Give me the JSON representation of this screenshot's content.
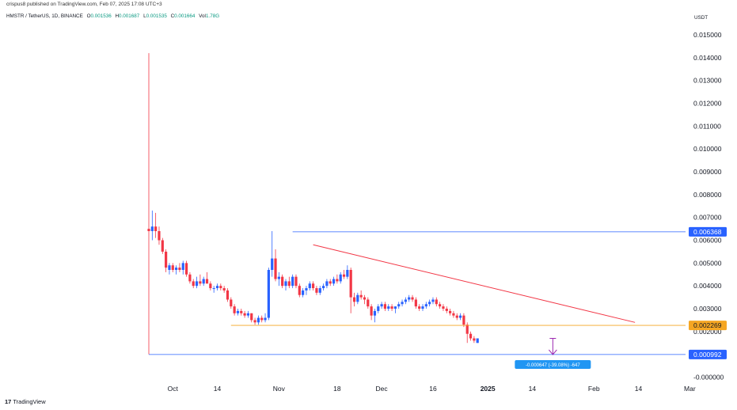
{
  "header": {
    "publisher": "crispus8 published on TradingView.com, Feb 07, 2025 17:08 UTC+3",
    "symbol": "HMSTR / TetherUS, 1D, BINANCE",
    "o_label": "O",
    "o_value": "0.001536",
    "h_label": "H",
    "h_value": "0.001687",
    "l_label": "L",
    "l_value": "0.001535",
    "c_label": "C",
    "c_value": "0.001664",
    "vol_label": "Vol",
    "vol_value": "1.78G",
    "currency": "USDT"
  },
  "footer": {
    "brand_logo": "17",
    "brand_name": "TradingView"
  },
  "colors": {
    "up": "#2962ff",
    "down": "#f23645",
    "resistance": "#f23645",
    "support": "#f5a623",
    "hline": "#2962ff",
    "accent": "#9c27b0",
    "grid": "#e0e3eb"
  },
  "chart_data": {
    "type": "candlestick",
    "title": "",
    "xlabel": "",
    "ylabel": "",
    "ylim": [
      -0.0005,
      0.0157
    ],
    "grid": false,
    "y_ticks": [
      "0.015000",
      "0.014000",
      "0.013000",
      "0.012000",
      "0.011000",
      "0.010000",
      "0.009000",
      "0.008000",
      "0.007000",
      "0.006000",
      "0.005000",
      "0.004000",
      "0.003000",
      "0.002000",
      "-0.000000"
    ],
    "x_ticks": [
      {
        "label": "Oct",
        "day": 10
      },
      {
        "label": "14",
        "day": 23
      },
      {
        "label": "Nov",
        "day": 41
      },
      {
        "label": "18",
        "day": 58
      },
      {
        "label": "Dec",
        "day": 71
      },
      {
        "label": "16",
        "day": 86
      },
      {
        "label": "2025",
        "day": 102,
        "bold": true
      },
      {
        "label": "14",
        "day": 115
      },
      {
        "label": "Feb",
        "day": 133
      },
      {
        "label": "14",
        "day": 146
      },
      {
        "label": "Mar",
        "day": 161
      }
    ],
    "candles": [
      [
        0.0065,
        0.0142,
        0.001,
        0.0064
      ],
      [
        0.0064,
        0.0073,
        0.006,
        0.0066
      ],
      [
        0.0066,
        0.0072,
        0.0061,
        0.0064
      ],
      [
        0.0064,
        0.0066,
        0.0058,
        0.006
      ],
      [
        0.006,
        0.0061,
        0.0054,
        0.0055
      ],
      [
        0.0055,
        0.0056,
        0.0046,
        0.0048
      ],
      [
        0.0047,
        0.005,
        0.0045,
        0.0049
      ],
      [
        0.0049,
        0.005,
        0.0046,
        0.0047
      ],
      [
        0.0047,
        0.0049,
        0.0045,
        0.0048
      ],
      [
        0.0048,
        0.005,
        0.0046,
        0.0047
      ],
      [
        0.0047,
        0.0051,
        0.0045,
        0.005
      ],
      [
        0.005,
        0.0051,
        0.0044,
        0.0045
      ],
      [
        0.0045,
        0.0046,
        0.0041,
        0.0042
      ],
      [
        0.0042,
        0.0043,
        0.0039,
        0.004
      ],
      [
        0.004,
        0.0044,
        0.0039,
        0.0042
      ],
      [
        0.0042,
        0.0045,
        0.004,
        0.0041
      ],
      [
        0.0041,
        0.0044,
        0.004,
        0.0043
      ],
      [
        0.0043,
        0.0046,
        0.0041,
        0.0041
      ],
      [
        0.0041,
        0.0042,
        0.0038,
        0.0039
      ],
      [
        0.0039,
        0.004,
        0.0037,
        0.0039
      ],
      [
        0.0039,
        0.0041,
        0.0038,
        0.004
      ],
      [
        0.004,
        0.0041,
        0.0038,
        0.0039
      ],
      [
        0.0039,
        0.004,
        0.0037,
        0.0038
      ],
      [
        0.0038,
        0.0039,
        0.0033,
        0.0034
      ],
      [
        0.0034,
        0.0035,
        0.003,
        0.0031
      ],
      [
        0.0031,
        0.0032,
        0.0027,
        0.0028
      ],
      [
        0.0028,
        0.003,
        0.0027,
        0.0029
      ],
      [
        0.0029,
        0.003,
        0.0027,
        0.0028
      ],
      [
        0.0028,
        0.0029,
        0.0026,
        0.0027
      ],
      [
        0.0027,
        0.0029,
        0.0026,
        0.0028
      ],
      [
        0.0028,
        0.0028,
        0.0024,
        0.0025
      ],
      [
        0.0025,
        0.0026,
        0.0023,
        0.0024
      ],
      [
        0.0024,
        0.0027,
        0.0023,
        0.0026
      ],
      [
        0.0026,
        0.0027,
        0.0024,
        0.0025
      ],
      [
        0.0025,
        0.0028,
        0.0024,
        0.0026
      ],
      [
        0.0026,
        0.0048,
        0.0025,
        0.0047
      ],
      [
        0.0047,
        0.0064,
        0.0044,
        0.0052
      ],
      [
        0.0052,
        0.0056,
        0.0042,
        0.0043
      ],
      [
        0.0043,
        0.0046,
        0.004,
        0.0044
      ],
      [
        0.0044,
        0.0045,
        0.0039,
        0.004
      ],
      [
        0.004,
        0.0043,
        0.0038,
        0.0042
      ],
      [
        0.0042,
        0.0044,
        0.0039,
        0.004
      ],
      [
        0.004,
        0.0045,
        0.0039,
        0.0044
      ],
      [
        0.0044,
        0.0045,
        0.0039,
        0.004
      ],
      [
        0.004,
        0.0041,
        0.0035,
        0.0036
      ],
      [
        0.0036,
        0.0039,
        0.0035,
        0.0038
      ],
      [
        0.0038,
        0.004,
        0.0036,
        0.0039
      ],
      [
        0.0039,
        0.0042,
        0.0038,
        0.0041
      ],
      [
        0.0041,
        0.0042,
        0.0038,
        0.0039
      ],
      [
        0.0039,
        0.004,
        0.0036,
        0.0037
      ],
      [
        0.0037,
        0.004,
        0.0036,
        0.0039
      ],
      [
        0.0039,
        0.0041,
        0.0038,
        0.004
      ],
      [
        0.004,
        0.0043,
        0.0039,
        0.0042
      ],
      [
        0.0042,
        0.0043,
        0.004,
        0.0041
      ],
      [
        0.0041,
        0.0044,
        0.004,
        0.0043
      ],
      [
        0.0043,
        0.0045,
        0.0041,
        0.0042
      ],
      [
        0.0042,
        0.0046,
        0.0041,
        0.0045
      ],
      [
        0.0045,
        0.0047,
        0.0043,
        0.0044
      ],
      [
        0.0044,
        0.0049,
        0.0043,
        0.0047
      ],
      [
        0.0047,
        0.0048,
        0.0028,
        0.0035
      ],
      [
        0.0035,
        0.0037,
        0.0031,
        0.0033
      ],
      [
        0.0033,
        0.0037,
        0.0032,
        0.0036
      ],
      [
        0.0036,
        0.0038,
        0.0034,
        0.0035
      ],
      [
        0.0035,
        0.0036,
        0.0032,
        0.0034
      ],
      [
        0.0034,
        0.0035,
        0.003,
        0.0031
      ],
      [
        0.0031,
        0.0032,
        0.0025,
        0.0027
      ],
      [
        0.0027,
        0.003,
        0.0024,
        0.0029
      ],
      [
        0.0029,
        0.0032,
        0.0028,
        0.0031
      ],
      [
        0.0031,
        0.0033,
        0.003,
        0.0032
      ],
      [
        0.0032,
        0.0033,
        0.0029,
        0.003
      ],
      [
        0.003,
        0.0032,
        0.0029,
        0.0031
      ],
      [
        0.0031,
        0.0032,
        0.0029,
        0.003
      ],
      [
        0.003,
        0.0031,
        0.0028,
        0.0031
      ],
      [
        0.0031,
        0.0033,
        0.003,
        0.0032
      ],
      [
        0.0032,
        0.0034,
        0.0031,
        0.0033
      ],
      [
        0.0033,
        0.0035,
        0.0032,
        0.0034
      ],
      [
        0.0034,
        0.0036,
        0.0033,
        0.0035
      ],
      [
        0.0035,
        0.0036,
        0.0033,
        0.0034
      ],
      [
        0.0034,
        0.0035,
        0.003,
        0.0031
      ],
      [
        0.0031,
        0.0032,
        0.0029,
        0.003
      ],
      [
        0.003,
        0.0032,
        0.0029,
        0.0031
      ],
      [
        0.0031,
        0.0033,
        0.003,
        0.0032
      ],
      [
        0.0032,
        0.0034,
        0.0031,
        0.0033
      ],
      [
        0.0033,
        0.0035,
        0.0032,
        0.0034
      ],
      [
        0.0034,
        0.0035,
        0.0031,
        0.0032
      ],
      [
        0.0032,
        0.0033,
        0.003,
        0.0031
      ],
      [
        0.0031,
        0.0032,
        0.0029,
        0.003
      ],
      [
        0.003,
        0.0031,
        0.0028,
        0.0029
      ],
      [
        0.0029,
        0.003,
        0.0027,
        0.0028
      ],
      [
        0.0028,
        0.0029,
        0.0026,
        0.0027
      ],
      [
        0.0027,
        0.0028,
        0.0025,
        0.0026
      ],
      [
        0.0026,
        0.0028,
        0.0025,
        0.0027
      ],
      [
        0.0027,
        0.0028,
        0.0022,
        0.0023
      ],
      [
        0.0023,
        0.0024,
        0.0015,
        0.0019
      ],
      [
        0.0019,
        0.002,
        0.0016,
        0.0017
      ],
      [
        0.0017,
        0.0018,
        0.0015,
        0.0016
      ],
      [
        0.0015,
        0.0017,
        0.0015,
        0.0017
      ]
    ],
    "candle_start_day": 3,
    "resistance_line": {
      "from": {
        "day": 51,
        "price": 0.0058
      },
      "to": {
        "day": 145,
        "price": 0.0024
      }
    },
    "support_line": {
      "from": {
        "day": 27,
        "price": 0.002269
      },
      "to": {
        "day": 146,
        "price": 0.002269
      }
    },
    "horizontal_lines": [
      {
        "price": 0.006368,
        "label": "0.006368",
        "color": "#2962ff",
        "from_day": 45
      },
      {
        "price": 0.000992,
        "label": "0.000992",
        "color": "#2962ff",
        "from_day": 3
      }
    ],
    "support_label": {
      "price": 0.002269,
      "label": "0.002269",
      "color": "#f5a623"
    },
    "measure": {
      "day": 121,
      "from_price": 0.0017,
      "to_price": 0.00099,
      "label": "-0.000647 (-39.08%) -647"
    }
  }
}
